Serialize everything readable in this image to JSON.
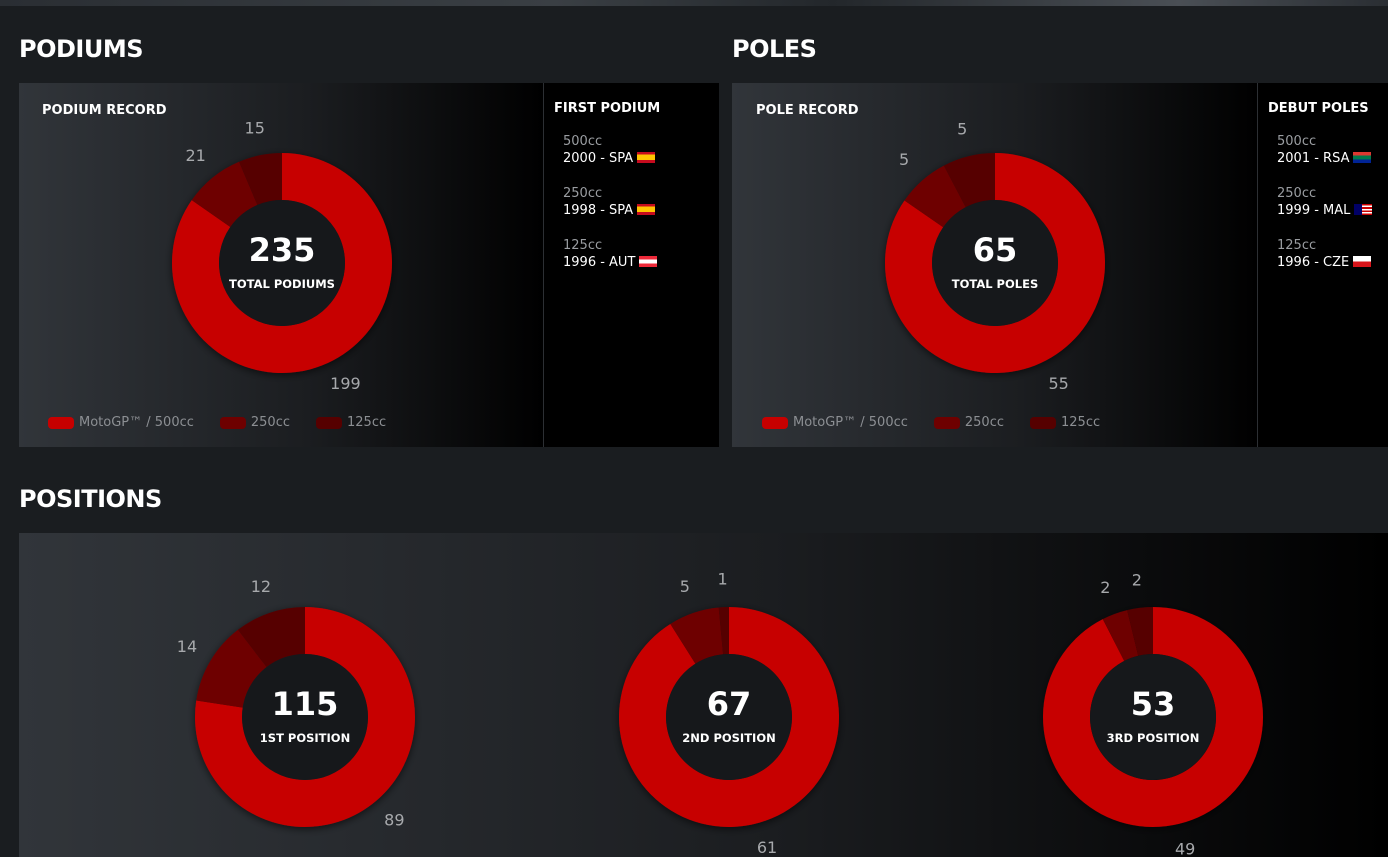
{
  "colors": {
    "motogp": "#c70000",
    "c250": "#6e0000",
    "c125": "#560000",
    "hole": "#16181b"
  },
  "podiums": {
    "title": "PODIUMS",
    "record_label": "PODIUM RECORD",
    "side_title": "FIRST PODIUM",
    "entries": [
      {
        "class": "500cc",
        "value": "2000 - SPA",
        "flag": "spain"
      },
      {
        "class": "250cc",
        "value": "1998 - SPA",
        "flag": "spain"
      },
      {
        "class": "125cc",
        "value": "1996 - AUT",
        "flag": "austria"
      }
    ]
  },
  "poles": {
    "title": "POLES",
    "record_label": "POLE RECORD",
    "side_title": "DEBUT POLES",
    "entries": [
      {
        "class": "500cc",
        "value": "2001 - RSA",
        "flag": "south-africa"
      },
      {
        "class": "250cc",
        "value": "1999 - MAL",
        "flag": "malaysia"
      },
      {
        "class": "125cc",
        "value": "1996 - CZE",
        "flag": "czech"
      }
    ]
  },
  "positions": {
    "title": "POSITIONS"
  },
  "legend": {
    "motogp": "MotoGP™ / 500cc",
    "c250": "250cc",
    "c125": "125cc"
  },
  "chart_data": [
    {
      "type": "pie",
      "title": "",
      "total": "235",
      "center_label": "TOTAL PODIUMS",
      "categories": [
        "MotoGP™ / 500cc",
        "250cc",
        "125cc"
      ],
      "values": [
        199,
        21,
        15
      ]
    },
    {
      "type": "pie",
      "title": "",
      "total": "65",
      "center_label": "TOTAL POLES",
      "categories": [
        "MotoGP™ / 500cc",
        "250cc",
        "125cc"
      ],
      "values": [
        55,
        5,
        5
      ]
    },
    {
      "type": "pie",
      "title": "",
      "total": "115",
      "center_label": "1ST POSITION",
      "categories": [
        "MotoGP™ / 500cc",
        "250cc",
        "125cc"
      ],
      "values": [
        89,
        14,
        12
      ]
    },
    {
      "type": "pie",
      "title": "",
      "total": "67",
      "center_label": "2ND POSITION",
      "categories": [
        "MotoGP™ / 500cc",
        "250cc",
        "125cc"
      ],
      "values": [
        61,
        5,
        1
      ]
    },
    {
      "type": "pie",
      "title": "",
      "total": "53",
      "center_label": "3RD POSITION",
      "categories": [
        "MotoGP™ / 500cc",
        "250cc",
        "125cc"
      ],
      "values": [
        49,
        2,
        2
      ]
    }
  ]
}
